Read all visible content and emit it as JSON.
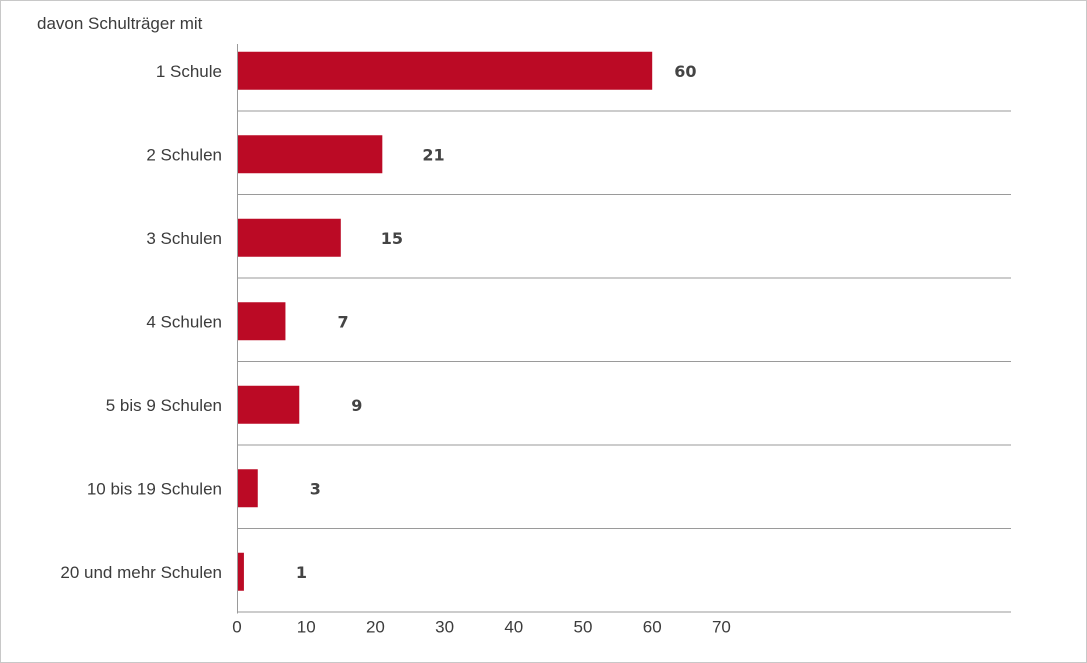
{
  "chart_data": {
    "type": "bar",
    "orientation": "horizontal",
    "title": "davon Schulträger mit",
    "categories": [
      "1 Schule",
      "2 Schulen",
      "3 Schulen",
      "4 Schulen",
      "5 bis 9 Schulen",
      "10 bis 19 Schulen",
      "20 und mehr Schulen"
    ],
    "values": [
      60,
      21,
      15,
      7,
      9,
      3,
      1
    ],
    "value_labels": [
      "60",
      "21",
      "15",
      "7",
      "9",
      "3",
      "1"
    ],
    "xticks": [
      "0",
      "10",
      "20",
      "30",
      "40",
      "50",
      "60",
      "70"
    ],
    "xlim": [
      0,
      70
    ],
    "xlabel": "",
    "ylabel": "",
    "grid": "horizontal separators between categories",
    "legend": "none",
    "bar_color": "#bb0a25",
    "grid_color": "#9a9a9a"
  }
}
